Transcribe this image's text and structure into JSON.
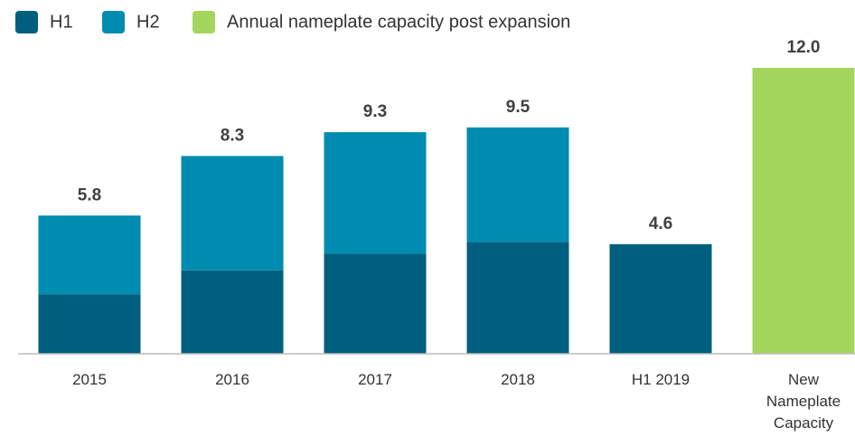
{
  "chart_data": {
    "type": "bar",
    "stacked": true,
    "categories": [
      "2015",
      "2016",
      "2017",
      "2018",
      "H1 2019",
      "New Nameplate Capacity"
    ],
    "series": [
      {
        "name": "H1",
        "color": "#005f7f",
        "values": [
          2.5,
          3.5,
          4.2,
          4.7,
          4.6,
          null
        ]
      },
      {
        "name": "H2",
        "color": "#008bb0",
        "values": [
          3.3,
          4.8,
          5.1,
          4.8,
          null,
          null
        ]
      },
      {
        "name": "Annual nameplate capacity post expansion",
        "color": "#a4d65e",
        "values": [
          null,
          null,
          null,
          null,
          null,
          12.0
        ]
      }
    ],
    "totals": [
      5.8,
      8.3,
      9.3,
      9.5,
      4.6,
      12.0
    ],
    "value_labels": [
      "5.8",
      "8.3",
      "9.3",
      "9.5",
      "4.6",
      "12.0"
    ]
  }
}
